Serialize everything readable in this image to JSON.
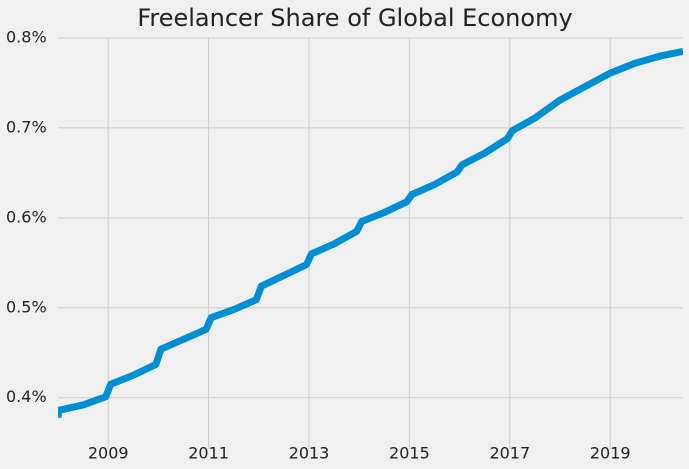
{
  "chart_data": {
    "type": "line",
    "title": "Freelancer Share of Global Economy",
    "x": [
      2008.0,
      2008.02,
      2008.5,
      2008.95,
      2009.05,
      2009.5,
      2009.95,
      2010.05,
      2010.5,
      2010.95,
      2011.05,
      2011.5,
      2011.95,
      2012.05,
      2012.5,
      2012.95,
      2013.05,
      2013.5,
      2013.95,
      2014.05,
      2014.5,
      2014.95,
      2015.05,
      2015.5,
      2015.95,
      2016.05,
      2016.5,
      2016.95,
      2017.05,
      2017.5,
      2018.0,
      2018.5,
      2019.0,
      2019.5,
      2020.0,
      2020.45
    ],
    "series": [
      {
        "color": "#008fd5",
        "values": [
          0.378,
          0.386,
          0.392,
          0.401,
          0.415,
          0.425,
          0.437,
          0.454,
          0.465,
          0.476,
          0.489,
          0.498,
          0.509,
          0.524,
          0.536,
          0.548,
          0.56,
          0.571,
          0.585,
          0.596,
          0.606,
          0.618,
          0.626,
          0.637,
          0.651,
          0.659,
          0.672,
          0.688,
          0.697,
          0.711,
          0.731,
          0.746,
          0.761,
          0.772,
          0.78,
          0.785
        ]
      }
    ],
    "xlim": [
      2008.0,
      2020.45
    ],
    "xticks": [
      2009,
      2011,
      2013,
      2015,
      2017,
      2019
    ],
    "ylim": [
      0.343,
      0.8
    ],
    "yticks": [
      {
        "value": 0.4,
        "label": "0.4%"
      },
      {
        "value": 0.5,
        "label": "0.5%"
      },
      {
        "value": 0.6,
        "label": "0.6%"
      },
      {
        "value": 0.7,
        "label": "0.7%"
      },
      {
        "value": 0.8,
        "label": "0.8%"
      }
    ],
    "grid": true
  }
}
